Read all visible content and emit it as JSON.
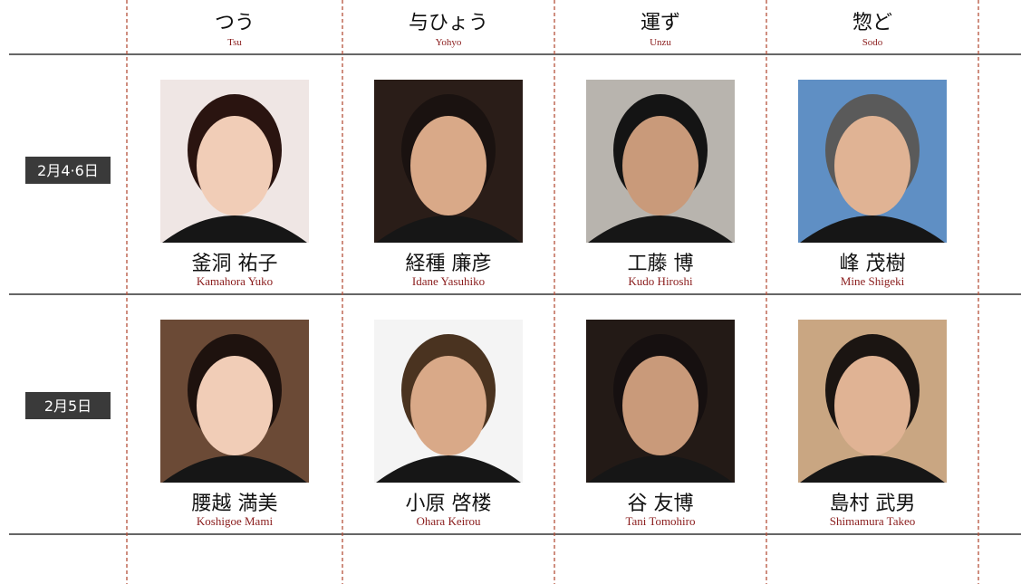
{
  "header": {
    "columns": [
      {
        "role": "つう",
        "romaji": "Tsu"
      },
      {
        "role": "与ひょう",
        "romaji": "Yohyo"
      },
      {
        "role": "運ず",
        "romaji": "Unzu"
      },
      {
        "role": "惣ど",
        "romaji": "Sodo"
      }
    ]
  },
  "rows": [
    {
      "date": "2月4·6日",
      "cast": [
        {
          "name": "釜洞 祐子",
          "romaji": "Kamahora Yuko"
        },
        {
          "name": "経種 廉彦",
          "romaji": "Idane Yasuhiko"
        },
        {
          "name": "工藤 博",
          "romaji": "Kudo Hiroshi"
        },
        {
          "name": "峰 茂樹",
          "romaji": "Mine Shigeki"
        }
      ]
    },
    {
      "date": "2月5日",
      "cast": [
        {
          "name": "腰越 満美",
          "romaji": "Koshigoe Mami"
        },
        {
          "name": "小原 啓楼",
          "romaji": "Ohara Keirou"
        },
        {
          "name": "谷 友博",
          "romaji": "Tani Tomohiro"
        },
        {
          "name": "島村 武男",
          "romaji": "Shimamura Takeo"
        }
      ]
    }
  ]
}
